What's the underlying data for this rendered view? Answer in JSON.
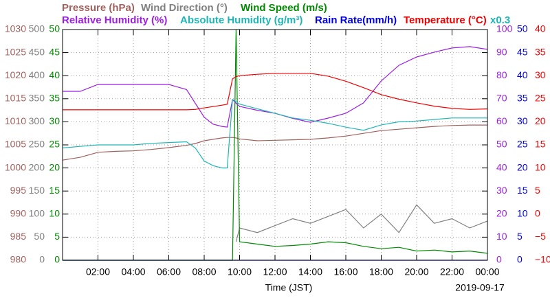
{
  "chart_data": {
    "type": "line",
    "x": [
      0,
      1,
      2,
      3,
      4,
      5,
      6,
      7,
      7.5,
      8,
      8.5,
      9,
      9.3,
      9.6,
      9.8,
      10,
      11,
      12,
      13,
      14,
      15,
      16,
      17,
      18,
      19,
      20,
      21,
      22,
      23,
      24
    ],
    "xlim": [
      0,
      24
    ],
    "xticks": [
      {
        "value": 2,
        "label": "02:00"
      },
      {
        "value": 4,
        "label": "04:00"
      },
      {
        "value": 6,
        "label": "06:00"
      },
      {
        "value": 8,
        "label": "08:00"
      },
      {
        "value": 10,
        "label": "10:00"
      },
      {
        "value": 12,
        "label": "12:00"
      },
      {
        "value": 14,
        "label": "14:00"
      },
      {
        "value": 16,
        "label": "16:00"
      },
      {
        "value": 18,
        "label": "18:00"
      },
      {
        "value": 20,
        "label": "20:00"
      },
      {
        "value": 22,
        "label": "22:00"
      },
      {
        "value": 24,
        "label": "00:00"
      }
    ],
    "xlabel": "Time (JST)",
    "date": "2019-09-17",
    "scale_note": "x0.3",
    "grid": true,
    "series": [
      {
        "name": "Pressure (hPa)",
        "color": "#a0605c",
        "ylim": [
          980,
          1030
        ],
        "yticks": [
          980,
          985,
          990,
          995,
          1000,
          1005,
          1010,
          1015,
          1020,
          1025,
          1030
        ],
        "values": [
          1001.7,
          1002.3,
          1003.4,
          1003.6,
          1003.7,
          1004.0,
          1004.4,
          1004.9,
          1005.3,
          1005.9,
          1006.2,
          1006.5,
          1006.6,
          1006.6,
          1006.5,
          1006.3,
          1005.9,
          1006.0,
          1006.1,
          1006.2,
          1006.5,
          1006.9,
          1007.5,
          1008.1,
          1008.4,
          1008.7,
          1009.0,
          1009.2,
          1009.3,
          1009.3
        ]
      },
      {
        "name": "Wind Direction (°)",
        "color": "#808080",
        "ylim": [
          0,
          500
        ],
        "yticks": [
          0,
          50,
          100,
          150,
          200,
          250,
          300,
          350,
          400,
          450,
          500
        ],
        "values": [
          null,
          null,
          null,
          null,
          null,
          null,
          null,
          null,
          null,
          null,
          null,
          null,
          null,
          null,
          40,
          70,
          60,
          75,
          90,
          80,
          95,
          110,
          70,
          100,
          60,
          120,
          80,
          90,
          70,
          85
        ]
      },
      {
        "name": "Wind Speed (m/s)",
        "color": "#008a00",
        "ylim": [
          0,
          50
        ],
        "yticks": [
          0,
          5,
          10,
          15,
          20,
          25,
          30,
          35,
          40,
          45,
          50
        ],
        "values": [
          0,
          0,
          0,
          0,
          0,
          0,
          0,
          0,
          0,
          0,
          0,
          0,
          0,
          0,
          50,
          4,
          3.5,
          3,
          3.2,
          3.5,
          4,
          3.8,
          3,
          2.5,
          2.8,
          2,
          2.2,
          1.8,
          2,
          1.5
        ]
      },
      {
        "name": "Relative Humidity (%)",
        "color": "#9b1fe0",
        "ylim": [
          0,
          100
        ],
        "yticks": [
          0,
          10,
          20,
          30,
          40,
          50,
          60,
          70,
          80,
          90,
          100
        ],
        "values": [
          73.2,
          73.2,
          76.2,
          76.2,
          76.2,
          76.2,
          76.2,
          74,
          68,
          62,
          59,
          58,
          57.7,
          69.6,
          68,
          66.7,
          65,
          63.7,
          61.5,
          59.8,
          61.6,
          63.7,
          68.2,
          77.7,
          84.5,
          88.1,
          90.2,
          92,
          92.6,
          91.4
        ]
      },
      {
        "name": "Absolute Humidity (g/m³)",
        "color": "#1fb5b5",
        "ylim": [
          0,
          30
        ],
        "values": [
          14.6,
          14.8,
          15.0,
          15.0,
          15.0,
          15.2,
          15.3,
          15.4,
          14.6,
          12.9,
          12.3,
          12.0,
          12.0,
          20.9,
          20.6,
          20.3,
          19.7,
          19.1,
          18.5,
          18.2,
          17.8,
          17.3,
          16.9,
          17.6,
          18.0,
          18.1,
          18.3,
          18.5,
          18.5,
          18.5
        ]
      },
      {
        "name": "Rain Rate(mm/h)",
        "color": "#0000e0",
        "ylim": [
          0,
          50
        ],
        "yticks": [
          0,
          5,
          10,
          15,
          20,
          25,
          30,
          35,
          40,
          45,
          50
        ],
        "values": [
          0,
          0,
          0,
          0,
          0,
          0,
          0,
          0,
          0,
          0,
          0,
          0,
          0,
          0,
          0,
          0,
          0,
          0,
          0,
          0,
          0,
          0,
          0,
          0,
          0,
          0,
          0,
          0,
          0,
          0
        ]
      },
      {
        "name": "Temperature (°C)",
        "color": "#f00000",
        "ylim": [
          -10,
          40
        ],
        "yticks": [
          {
            "value": -10,
            "label": "−10"
          },
          {
            "value": -5,
            "label": "−5"
          },
          0,
          5,
          10,
          15,
          20,
          25,
          30,
          35,
          40
        ],
        "values": [
          22.6,
          22.6,
          22.6,
          22.6,
          22.6,
          22.6,
          22.6,
          22.6,
          22.7,
          23.0,
          23.3,
          23.6,
          23.8,
          29.3,
          29.8,
          30.0,
          30.3,
          30.5,
          30.5,
          30.5,
          29.9,
          28.8,
          27.4,
          25.9,
          24.9,
          24.1,
          23.4,
          22.9,
          22.7,
          22.8
        ]
      }
    ]
  }
}
